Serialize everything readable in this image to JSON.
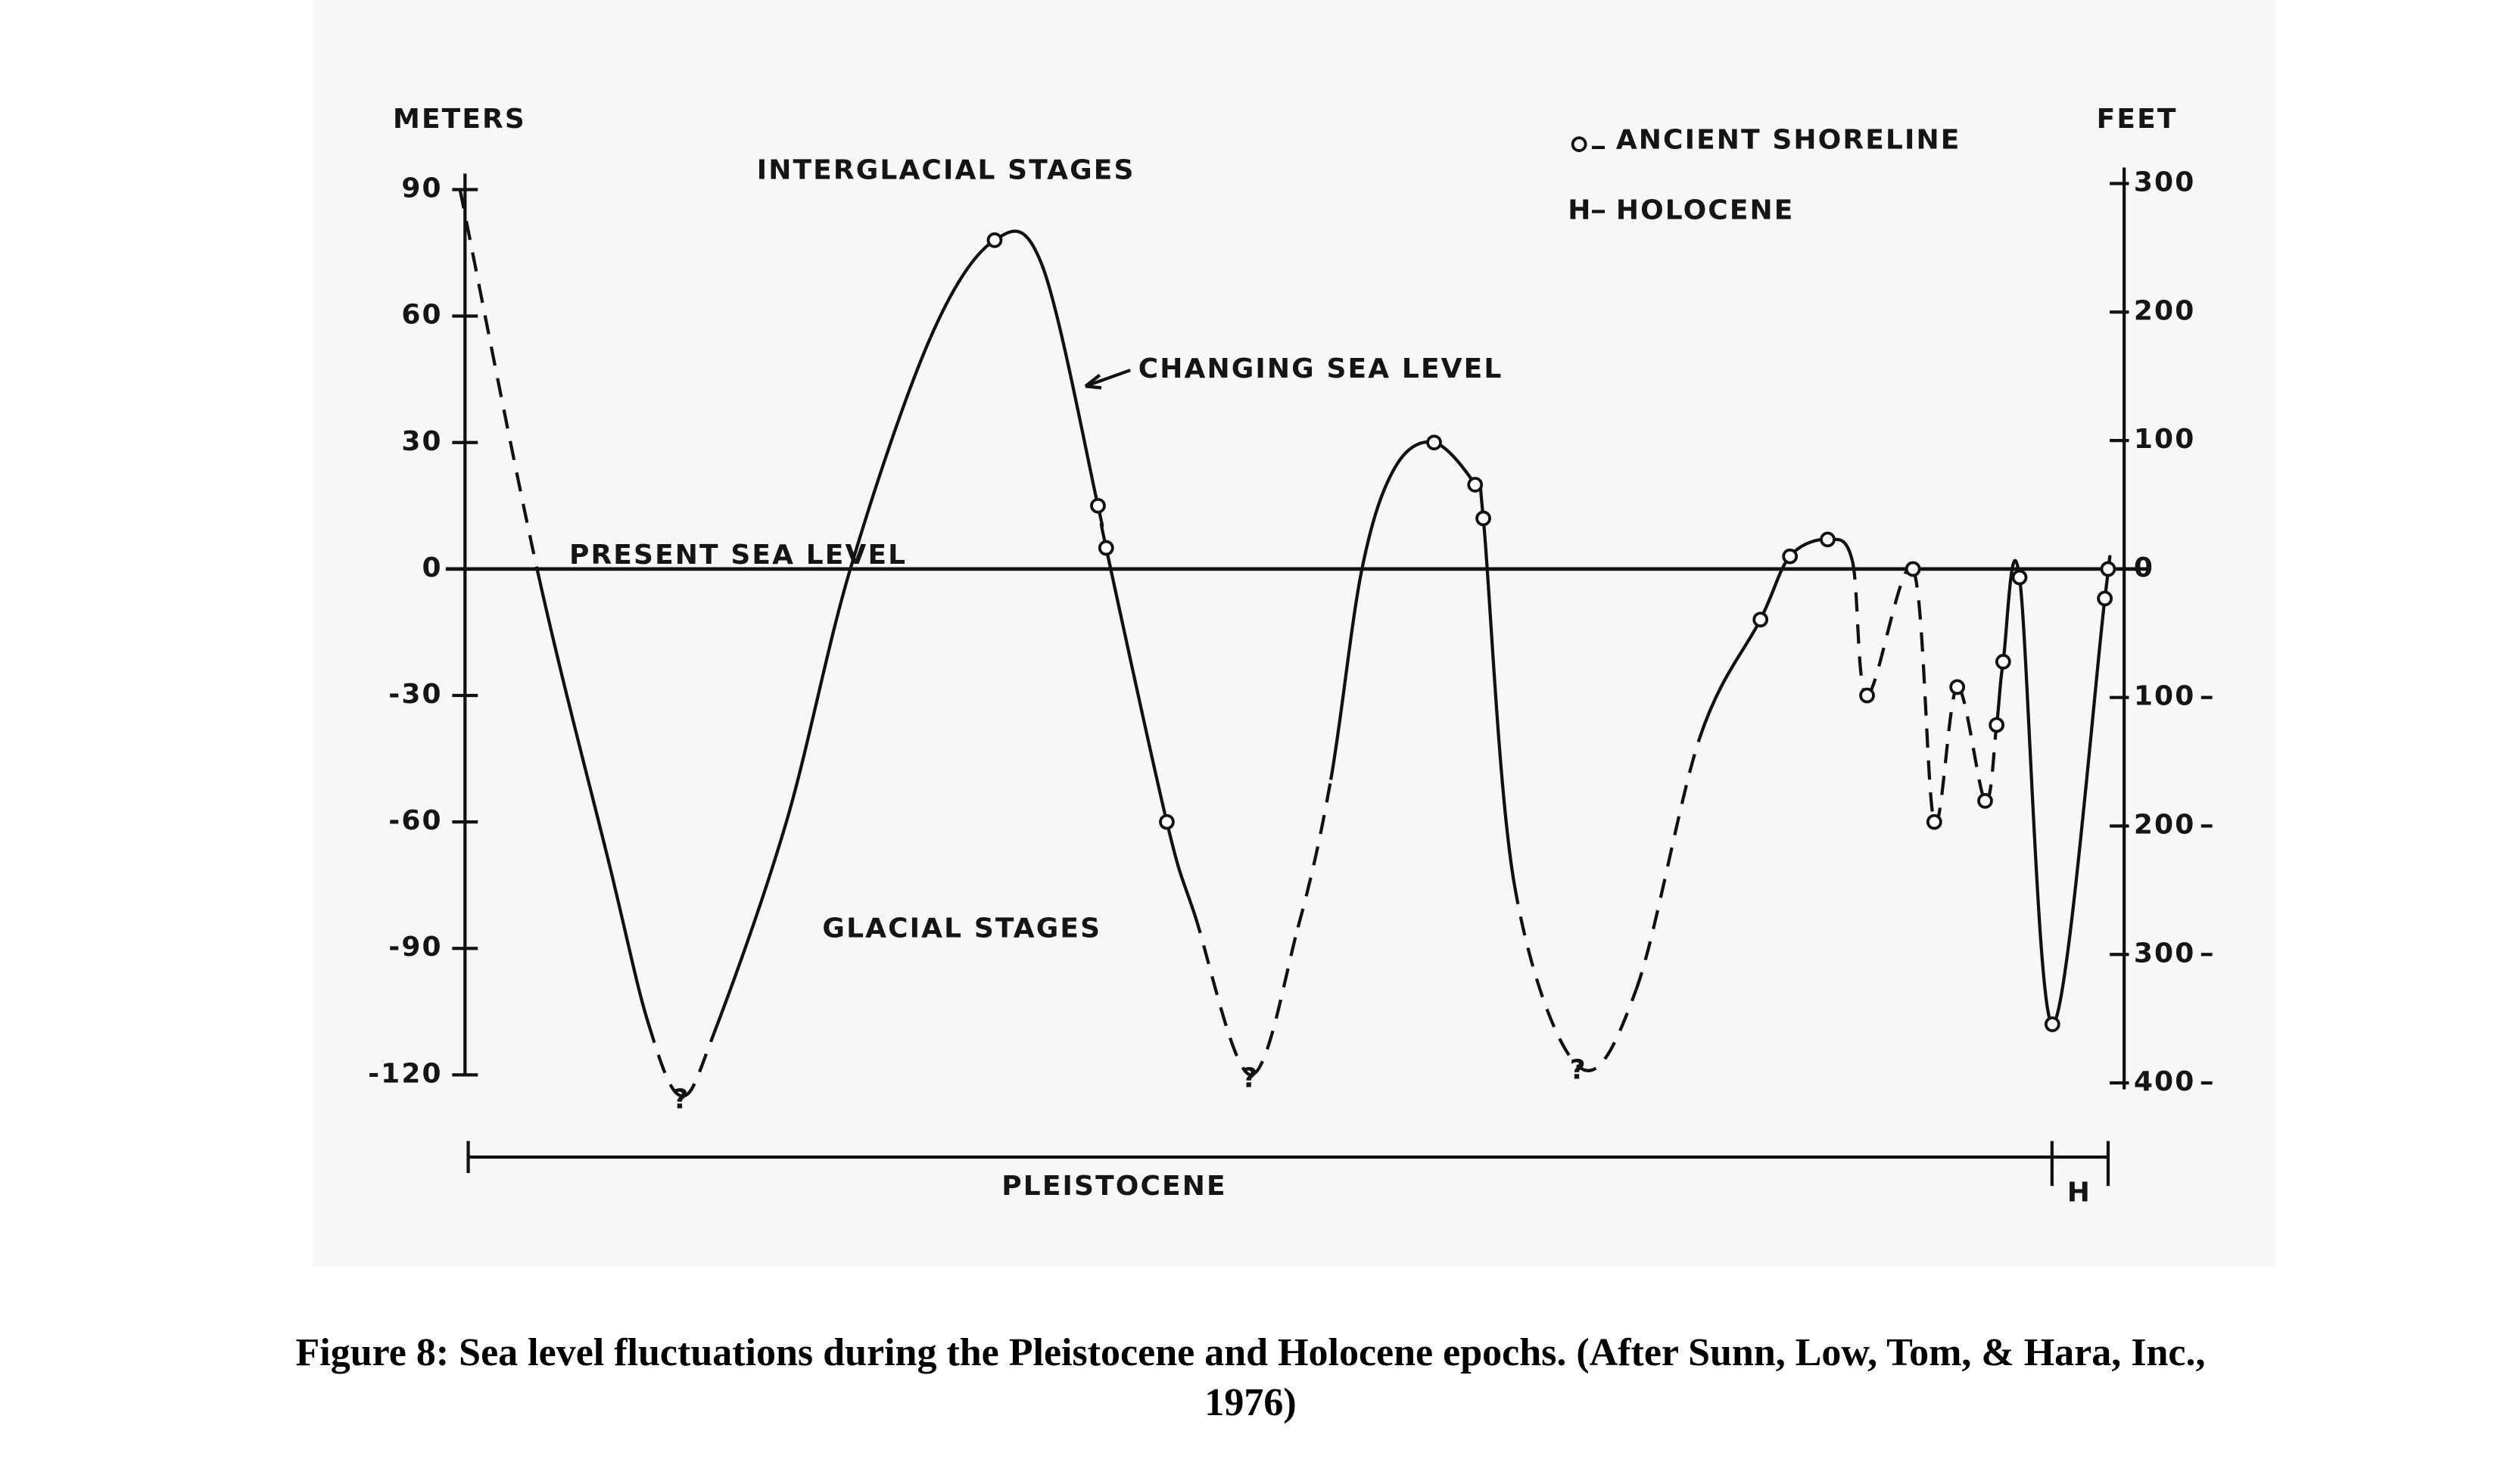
{
  "chart_data": {
    "type": "line",
    "y_axis_label": "METERS",
    "y2_axis_label": "FEET",
    "annotations": {
      "interglacial": "INTERGLACIAL STAGES",
      "glacial": "GLACIAL STAGES",
      "changing": "CHANGING SEA LEVEL",
      "present": "PRESENT SEA LEVEL",
      "pleistocene": "PLEISTOCENE",
      "holocene_mark": "H"
    },
    "legend": {
      "shoreline": "ANCIENT SHORELINE",
      "holocene_symbol": "H",
      "holocene": "HOLOCENE"
    },
    "color": "#111111",
    "xlim": [
      0,
      100
    ],
    "ylim": [
      -130,
      100
    ],
    "yticks": [
      90,
      60,
      30,
      0,
      -30,
      -60,
      -90,
      -120
    ],
    "y2lim": [
      -426.5,
      328.1
    ],
    "y2ticks": [
      300,
      200,
      100,
      0,
      {
        "value": -100,
        "label": "100"
      },
      {
        "value": -200,
        "label": "200"
      },
      {
        "value": -300,
        "label": "300"
      },
      {
        "value": -400,
        "label": "400"
      }
    ],
    "x": [
      -0.5,
      4.2,
      8.6,
      11,
      13,
      15,
      19.4,
      23.3,
      28.2,
      32.1,
      35,
      38.4,
      38.9,
      42.6,
      44.3,
      47.7,
      50.6,
      52.6,
      54.5,
      56.5,
      58.9,
      61.4,
      61.9,
      63.8,
      67.7,
      71.2,
      75.1,
      78.8,
      80.6,
      82.9,
      84.4,
      85.3,
      88.1,
      89.4,
      90.8,
      92.5,
      93.2,
      93.6,
      94.6,
      96.6,
      99.8,
      100
    ],
    "values": [
      90,
      0,
      -70,
      -108,
      -125,
      -110,
      -60,
      0,
      55,
      78,
      72,
      15,
      5,
      -60,
      -82,
      -120,
      -85,
      -50,
      0,
      24,
      30,
      20,
      12,
      -75,
      -118,
      -100,
      -40,
      -12,
      3,
      7,
      2,
      -30,
      0,
      -60,
      -28,
      -55,
      -37,
      -22,
      -2,
      -108,
      -7,
      0
    ],
    "dashed": [
      true,
      false,
      false,
      true,
      true,
      false,
      false,
      false,
      false,
      false,
      false,
      false,
      false,
      false,
      true,
      true,
      true,
      false,
      false,
      false,
      false,
      false,
      false,
      true,
      true,
      true,
      false,
      false,
      false,
      false,
      true,
      true,
      true,
      true,
      true,
      true,
      false,
      false,
      false,
      false,
      false,
      false
    ],
    "shorelines": {
      "x": [
        32.1,
        38.4,
        38.9,
        42.6,
        58.9,
        61.4,
        61.9,
        78.8,
        80.6,
        82.9,
        85.3,
        88.1,
        89.4,
        90.8,
        92.5,
        93.2,
        93.6,
        94.6,
        96.6,
        99.8,
        100
      ],
      "values": [
        78,
        15,
        5,
        -60,
        30,
        20,
        12,
        -12,
        3,
        7,
        -30,
        0,
        -60,
        -28,
        -55,
        -37,
        -22,
        -2,
        -108,
        -7,
        0
      ]
    },
    "unknown": {
      "label": "?",
      "x": [
        13,
        47.7,
        67.7
      ],
      "values": [
        -125,
        -120,
        -118
      ]
    },
    "caption": "Figure 8: Sea level fluctuations during the Pleistocene and Holocene epochs. (After Sunn, Low, Tom, & Hara, Inc., 1976)"
  }
}
